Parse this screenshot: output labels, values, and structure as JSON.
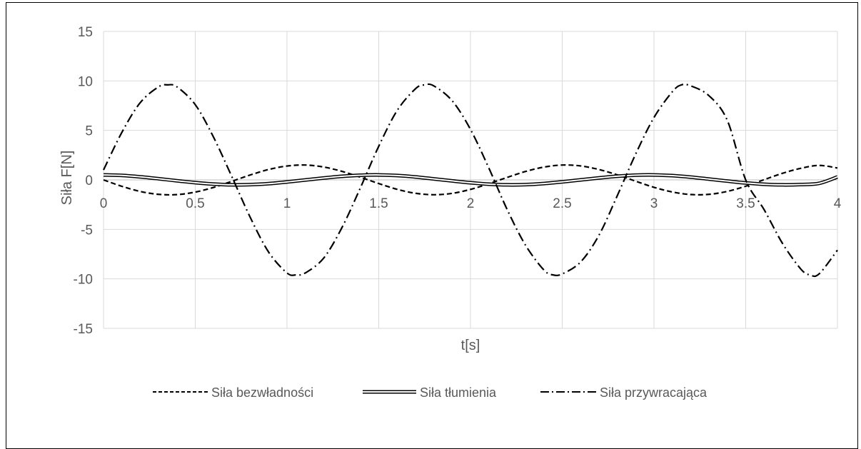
{
  "chart_data": {
    "type": "line",
    "title": "",
    "xlabel": "t[s]",
    "ylabel": "Siła F[N]",
    "xlim": [
      0,
      4
    ],
    "ylim": [
      -15,
      15
    ],
    "x_ticks": [
      "0",
      "0.5",
      "1",
      "1.5",
      "2",
      "2.5",
      "3",
      "3.5",
      "4"
    ],
    "y_ticks": [
      "15",
      "10",
      "5",
      "0",
      "-5",
      "-10",
      "-15"
    ],
    "grid": true,
    "legend_position": "bottom",
    "series": [
      {
        "name": "Siła bezwładności",
        "style": "dashed",
        "color": "#000000",
        "x": [
          0,
          0.1,
          0.2,
          0.3,
          0.4,
          0.5,
          0.6,
          0.7,
          0.8,
          0.9,
          1.0,
          1.1,
          1.2,
          1.3,
          1.4,
          1.5,
          1.6,
          1.7,
          1.8,
          1.9,
          2.0,
          2.1,
          2.2,
          2.3,
          2.4,
          2.5,
          2.6,
          2.7,
          2.8,
          2.9,
          3.0,
          3.1,
          3.2,
          3.3,
          3.4,
          3.5,
          3.6,
          3.7,
          3.8,
          3.9,
          4.0
        ],
        "y": [
          0,
          -0.65,
          -1.17,
          -1.46,
          -1.49,
          -1.23,
          -0.76,
          -0.14,
          0.5,
          1.05,
          1.4,
          1.5,
          1.3,
          0.86,
          0.27,
          -0.37,
          -0.95,
          -1.35,
          -1.5,
          -1.36,
          -0.96,
          -0.39,
          0.25,
          0.85,
          1.29,
          1.5,
          1.41,
          1.05,
          0.51,
          -0.13,
          -0.75,
          -1.22,
          -1.48,
          -1.46,
          -1.16,
          -0.64,
          0.02,
          0.66,
          1.17,
          1.46,
          1.2
        ]
      },
      {
        "name": "Siła tłumienia",
        "style": "double",
        "color": "#000000",
        "x": [
          0,
          0.1,
          0.2,
          0.3,
          0.4,
          0.5,
          0.6,
          0.7,
          0.8,
          0.9,
          1.0,
          1.1,
          1.2,
          1.3,
          1.4,
          1.5,
          1.6,
          1.7,
          1.8,
          1.9,
          2.0,
          2.1,
          2.2,
          2.3,
          2.4,
          2.5,
          2.6,
          2.7,
          2.8,
          2.9,
          3.0,
          3.1,
          3.2,
          3.3,
          3.4,
          3.5,
          3.6,
          3.7,
          3.8,
          3.9,
          4.0
        ],
        "y": [
          0.5,
          0.45,
          0.31,
          0.12,
          -0.09,
          -0.28,
          -0.42,
          -0.5,
          -0.48,
          -0.38,
          -0.21,
          -0.01,
          0.19,
          0.36,
          0.47,
          0.5,
          0.44,
          0.3,
          0.1,
          -0.1,
          -0.29,
          -0.43,
          -0.5,
          -0.48,
          -0.37,
          -0.2,
          0.0,
          0.2,
          0.37,
          0.48,
          0.5,
          0.43,
          0.28,
          0.08,
          -0.12,
          -0.31,
          -0.44,
          -0.5,
          -0.47,
          -0.35,
          0.3
        ]
      },
      {
        "name": "Siła przywracająca",
        "style": "dash-dot",
        "color": "#000000",
        "x": [
          0,
          0.1,
          0.2,
          0.3,
          0.35,
          0.4,
          0.5,
          0.6,
          0.7,
          0.8,
          0.9,
          1.0,
          1.05,
          1.1,
          1.2,
          1.3,
          1.4,
          1.5,
          1.6,
          1.7,
          1.75,
          1.8,
          1.9,
          2.0,
          2.1,
          2.2,
          2.3,
          2.4,
          2.45,
          2.5,
          2.6,
          2.7,
          2.8,
          2.9,
          3.0,
          3.1,
          3.15,
          3.2,
          3.3,
          3.4,
          3.5,
          3.6,
          3.7,
          3.8,
          3.85,
          3.9,
          4.0
        ],
        "y": [
          1.0,
          4.8,
          7.8,
          9.4,
          9.6,
          9.4,
          7.6,
          4.3,
          0.3,
          -3.8,
          -7.3,
          -9.4,
          -9.6,
          -9.4,
          -7.9,
          -4.8,
          -0.8,
          3.4,
          7.0,
          9.2,
          9.6,
          9.5,
          8.0,
          5.1,
          1.2,
          -3.0,
          -6.6,
          -9.1,
          -9.6,
          -9.5,
          -8.3,
          -5.6,
          -1.6,
          2.6,
          6.3,
          8.9,
          9.6,
          9.5,
          8.5,
          6.0,
          0.0,
          -3.0,
          -6.4,
          -9.0,
          -9.6,
          -9.5,
          -7.1
        ]
      }
    ]
  }
}
